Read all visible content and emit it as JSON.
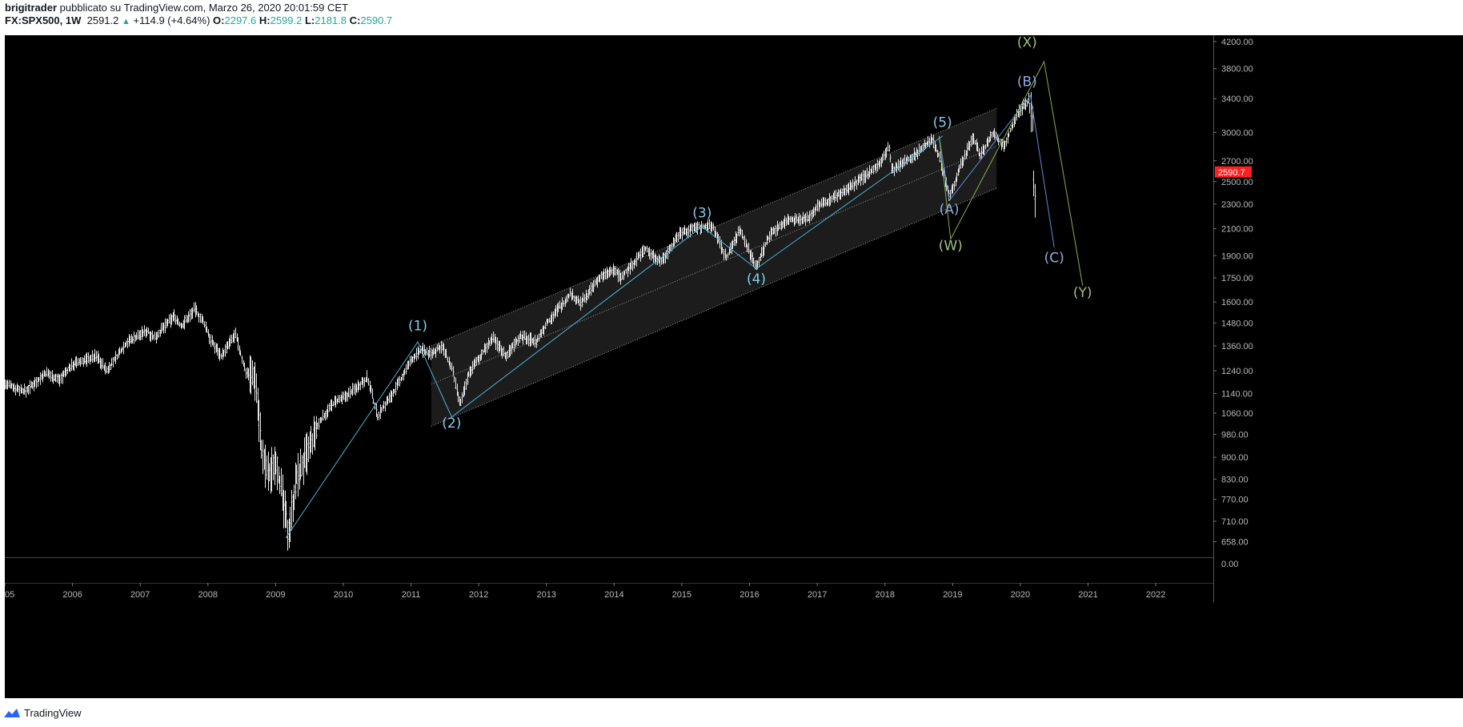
{
  "header": {
    "author": "brigitrader",
    "published": "pubblicato su TradingView.com, Marzo 26, 2020 20:01:59 CET",
    "symbol": "FX:SPX500, 1W",
    "last": "2591.2",
    "change": "+114.9 (+4.64%)",
    "o_label": "O:",
    "o_value": "2297.6",
    "h_label": "H:",
    "h_value": "2599.2",
    "l_label": "L:",
    "l_value": "2181.8",
    "c_label": "C:",
    "c_value": "2590.7"
  },
  "footer": {
    "brand": "TradingView"
  },
  "colors": {
    "background": "#000000",
    "candles": "#e6e6e6",
    "impulse_lines": "#4fb3d4",
    "impulse_labels": "#7fd0ec",
    "abc_lines": "#5b8fd6",
    "abc_labels": "#8fb0e0",
    "wxy_lines": "#8ab04a",
    "wxy_labels": "#9fc27a",
    "channel_fill": "#1c1c1c",
    "price_tag": "#ff1f1f"
  },
  "chart_data": {
    "type": "candlestick",
    "timeframe": "1W",
    "symbol": "FX:SPX500",
    "x_range": [
      2005.0,
      2022.85
    ],
    "y_scale": "log",
    "y_range": [
      625,
      4300
    ],
    "x_tick_labels": [
      "2005",
      "2006",
      "2007",
      "2008",
      "2009",
      "2010",
      "2011",
      "2012",
      "2013",
      "2014",
      "2015",
      "2016",
      "2017",
      "2018",
      "2019",
      "2020",
      "2021",
      "2022"
    ],
    "y_tick_labels": [
      "4200.00",
      "3800.00",
      "3400.00",
      "3000.00",
      "2700.00",
      "2500.00",
      "2300.00",
      "2100.00",
      "1900.00",
      "1750.00",
      "1600.00",
      "1480.00",
      "1360.00",
      "1240.00",
      "1140.00",
      "1060.00",
      "980.00",
      "900.00",
      "830.00",
      "770.00",
      "710.00",
      "658.00"
    ],
    "indicator_tick_label": "0.00",
    "last_price_tag": "2590.7",
    "price_path": [
      [
        2005.0,
        1180
      ],
      [
        2005.3,
        1150
      ],
      [
        2005.6,
        1230
      ],
      [
        2005.8,
        1200
      ],
      [
        2006.0,
        1270
      ],
      [
        2006.35,
        1310
      ],
      [
        2006.5,
        1240
      ],
      [
        2006.8,
        1380
      ],
      [
        2007.1,
        1440
      ],
      [
        2007.2,
        1400
      ],
      [
        2007.5,
        1520
      ],
      [
        2007.6,
        1460
      ],
      [
        2007.8,
        1560
      ],
      [
        2007.95,
        1470
      ],
      [
        2008.05,
        1380
      ],
      [
        2008.2,
        1310
      ],
      [
        2008.4,
        1420
      ],
      [
        2008.55,
        1240
      ],
      [
        2008.7,
        1210
      ],
      [
        2008.8,
        900
      ],
      [
        2008.9,
        840
      ],
      [
        2009.0,
        900
      ],
      [
        2009.18,
        680
      ],
      [
        2009.3,
        830
      ],
      [
        2009.5,
        930
      ],
      [
        2009.65,
        1030
      ],
      [
        2009.85,
        1100
      ],
      [
        2010.0,
        1120
      ],
      [
        2010.2,
        1170
      ],
      [
        2010.35,
        1210
      ],
      [
        2010.5,
        1050
      ],
      [
        2010.6,
        1090
      ],
      [
        2010.75,
        1150
      ],
      [
        2011.0,
        1290
      ],
      [
        2011.15,
        1340
      ],
      [
        2011.3,
        1320
      ],
      [
        2011.45,
        1360
      ],
      [
        2011.6,
        1250
      ],
      [
        2011.72,
        1090
      ],
      [
        2011.85,
        1230
      ],
      [
        2012.0,
        1300
      ],
      [
        2012.2,
        1400
      ],
      [
        2012.4,
        1310
      ],
      [
        2012.6,
        1410
      ],
      [
        2012.85,
        1380
      ],
      [
        2013.0,
        1480
      ],
      [
        2013.35,
        1650
      ],
      [
        2013.5,
        1590
      ],
      [
        2013.8,
        1760
      ],
      [
        2014.0,
        1800
      ],
      [
        2014.1,
        1750
      ],
      [
        2014.45,
        1950
      ],
      [
        2014.7,
        1860
      ],
      [
        2014.95,
        2060
      ],
      [
        2015.2,
        2110
      ],
      [
        2015.45,
        2120
      ],
      [
        2015.65,
        1880
      ],
      [
        2015.85,
        2090
      ],
      [
        2016.0,
        1920
      ],
      [
        2016.1,
        1830
      ],
      [
        2016.3,
        2060
      ],
      [
        2016.55,
        2170
      ],
      [
        2016.85,
        2180
      ],
      [
        2017.0,
        2280
      ],
      [
        2017.3,
        2380
      ],
      [
        2017.6,
        2500
      ],
      [
        2017.95,
        2690
      ],
      [
        2018.05,
        2860
      ],
      [
        2018.1,
        2600
      ],
      [
        2018.35,
        2720
      ],
      [
        2018.7,
        2920
      ],
      [
        2018.8,
        2740
      ],
      [
        2018.95,
        2360
      ],
      [
        2019.1,
        2640
      ],
      [
        2019.3,
        2950
      ],
      [
        2019.4,
        2750
      ],
      [
        2019.6,
        3000
      ],
      [
        2019.75,
        2850
      ],
      [
        2019.95,
        3220
      ],
      [
        2020.12,
        3390
      ],
      [
        2020.18,
        3050
      ],
      [
        2020.2,
        2250
      ],
      [
        2020.23,
        2590
      ]
    ],
    "channel": {
      "upper": [
        [
          2011.3,
          1360
        ],
        [
          2019.65,
          3280
        ]
      ],
      "middle": [
        [
          2011.3,
          1180
        ],
        [
          2019.65,
          2850
        ]
      ],
      "lower": [
        [
          2011.3,
          1010
        ],
        [
          2019.65,
          2440
        ]
      ]
    },
    "wave_lines": [
      {
        "series": "impulse",
        "points": [
          [
            2009.15,
            667
          ],
          [
            2011.1,
            1380
          ],
          [
            2011.6,
            1045
          ],
          [
            2015.3,
            2115
          ],
          [
            2016.1,
            1810
          ],
          [
            2018.85,
            2960
          ]
        ]
      },
      {
        "series": "abc",
        "points": [
          [
            2018.8,
            2960
          ],
          [
            2018.95,
            2330
          ],
          [
            2020.15,
            3440
          ],
          [
            2020.5,
            1960
          ]
        ]
      },
      {
        "series": "wxy",
        "points": [
          [
            2018.8,
            2960
          ],
          [
            2018.97,
            2020
          ],
          [
            2020.35,
            3900
          ],
          [
            2020.92,
            1700
          ]
        ]
      }
    ],
    "wave_labels": [
      {
        "text": "(1)",
        "series": "impulse",
        "x": 2011.1,
        "y": 1440
      },
      {
        "text": "(2)",
        "series": "impulse",
        "x": 2011.6,
        "y": 1005
      },
      {
        "text": "(3)",
        "series": "impulse",
        "x": 2015.3,
        "y": 2190
      },
      {
        "text": "(4)",
        "series": "impulse",
        "x": 2016.1,
        "y": 1715
      },
      {
        "text": "(5)",
        "series": "impulse",
        "x": 2018.85,
        "y": 3060
      },
      {
        "text": "(A)",
        "series": "abc",
        "x": 2018.95,
        "y": 2220
      },
      {
        "text": "(B)",
        "series": "abc",
        "x": 2020.1,
        "y": 3560
      },
      {
        "text": "(C)",
        "series": "abc",
        "x": 2020.5,
        "y": 1855
      },
      {
        "text": "(W)",
        "series": "wxy",
        "x": 2018.97,
        "y": 1940
      },
      {
        "text": "(X)",
        "series": "wxy",
        "x": 2020.1,
        "y": 4120
      },
      {
        "text": "(Y)",
        "series": "wxy",
        "x": 2020.92,
        "y": 1630
      }
    ]
  }
}
